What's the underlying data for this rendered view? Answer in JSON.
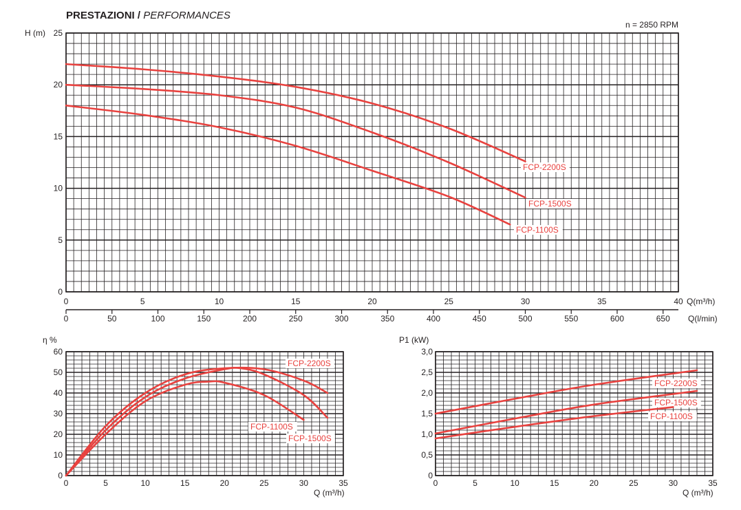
{
  "header": {
    "title": "PRESTAZIONI /",
    "subtitle": "PERFORMANCES"
  },
  "colors": {
    "curve": "#e8423f",
    "grid": "#231f20",
    "label_text": "#e8423f"
  },
  "chart_data": [
    {
      "type": "line",
      "title": "",
      "ylabel": "H (m)",
      "xlabel": "Q(m³/h)",
      "xlabel2": "Q(l/min)",
      "annotation": "n = 2850 RPM",
      "xlim": [
        0,
        40
      ],
      "ylim": [
        0,
        25
      ],
      "xticks": [
        0,
        5,
        10,
        15,
        20,
        25,
        30,
        35,
        40
      ],
      "yticks": [
        0,
        5,
        10,
        15,
        20,
        25
      ],
      "xticks2": [
        0,
        50,
        100,
        150,
        200,
        250,
        300,
        350,
        400,
        450,
        500,
        550,
        600,
        650
      ],
      "grid": true,
      "series": [
        {
          "name": "FCP-2200S",
          "x": [
            0,
            5,
            10,
            15,
            20,
            25,
            30
          ],
          "y": [
            22,
            21.5,
            20.8,
            19.8,
            18.2,
            15.8,
            12.6
          ]
        },
        {
          "name": "FCP-1500S",
          "x": [
            0,
            5,
            10,
            15,
            20,
            25,
            30
          ],
          "y": [
            20,
            19.6,
            19.0,
            17.8,
            15.4,
            12.5,
            9.1
          ]
        },
        {
          "name": "FCP-1100S",
          "x": [
            0,
            5,
            10,
            15,
            20,
            25,
            29
          ],
          "y": [
            18,
            17.1,
            15.9,
            14.1,
            11.7,
            9.2,
            6.5
          ]
        }
      ]
    },
    {
      "type": "line",
      "title": "",
      "ylabel": "η %",
      "xlabel": "Q (m³/h)",
      "xlim": [
        0,
        35
      ],
      "ylim": [
        0,
        60
      ],
      "xticks": [
        0,
        5,
        10,
        15,
        20,
        25,
        30,
        35
      ],
      "yticks": [
        0,
        10,
        20,
        30,
        40,
        50,
        60
      ],
      "grid": true,
      "series": [
        {
          "name": "FCP-2200S",
          "x": [
            0,
            5,
            10,
            15,
            20,
            25,
            30,
            33
          ],
          "y": [
            0,
            24,
            40,
            49,
            52,
            51.5,
            46,
            40
          ]
        },
        {
          "name": "FCP-1500S",
          "x": [
            0,
            5,
            10,
            15,
            20,
            22,
            25,
            30,
            33
          ],
          "y": [
            0,
            22,
            38,
            47,
            51.5,
            52,
            49,
            39,
            28
          ]
        },
        {
          "name": "FCP-1100S",
          "x": [
            0,
            5,
            10,
            15,
            18,
            20,
            25,
            30
          ],
          "y": [
            0,
            20,
            36,
            44,
            45.5,
            45,
            39,
            27
          ]
        }
      ]
    },
    {
      "type": "line",
      "title": "",
      "ylabel": "P1 (kW)",
      "xlabel": "Q (m³/h)",
      "xlim": [
        0,
        35
      ],
      "ylim": [
        0,
        3
      ],
      "xticks": [
        0,
        5,
        10,
        15,
        20,
        25,
        30,
        35
      ],
      "yticks": [
        "0",
        "0,5",
        "1,0",
        "1,5",
        "2,0",
        "2,5",
        "3,0"
      ],
      "grid": true,
      "series": [
        {
          "name": "FCP-2200S",
          "x": [
            0,
            10,
            20,
            33
          ],
          "y": [
            1.5,
            1.86,
            2.2,
            2.55
          ]
        },
        {
          "name": "FCP-1500S",
          "x": [
            0,
            10,
            20,
            33
          ],
          "y": [
            1.02,
            1.38,
            1.72,
            2.05
          ]
        },
        {
          "name": "FCP-1100S",
          "x": [
            0,
            10,
            20,
            30
          ],
          "y": [
            0.9,
            1.18,
            1.44,
            1.66
          ]
        }
      ]
    }
  ]
}
